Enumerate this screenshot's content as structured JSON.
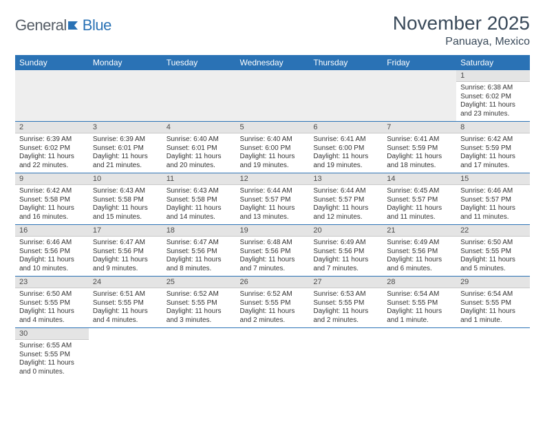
{
  "logo": {
    "text_general": "General",
    "text_blue": "Blue"
  },
  "title": "November 2025",
  "subtitle": "Panuaya, Mexico",
  "colors": {
    "header_bg": "#2a72b5",
    "header_text": "#ffffff",
    "daynum_bg": "#e4e4e4",
    "row_divider": "#2a72b5",
    "body_text": "#333333",
    "title_text": "#3a4a5a"
  },
  "day_headers": [
    "Sunday",
    "Monday",
    "Tuesday",
    "Wednesday",
    "Thursday",
    "Friday",
    "Saturday"
  ],
  "weeks": [
    [
      null,
      null,
      null,
      null,
      null,
      null,
      {
        "n": "1",
        "sr": "6:38 AM",
        "ss": "6:02 PM",
        "dl": "11 hours and 23 minutes."
      }
    ],
    [
      {
        "n": "2",
        "sr": "6:39 AM",
        "ss": "6:02 PM",
        "dl": "11 hours and 22 minutes."
      },
      {
        "n": "3",
        "sr": "6:39 AM",
        "ss": "6:01 PM",
        "dl": "11 hours and 21 minutes."
      },
      {
        "n": "4",
        "sr": "6:40 AM",
        "ss": "6:01 PM",
        "dl": "11 hours and 20 minutes."
      },
      {
        "n": "5",
        "sr": "6:40 AM",
        "ss": "6:00 PM",
        "dl": "11 hours and 19 minutes."
      },
      {
        "n": "6",
        "sr": "6:41 AM",
        "ss": "6:00 PM",
        "dl": "11 hours and 19 minutes."
      },
      {
        "n": "7",
        "sr": "6:41 AM",
        "ss": "5:59 PM",
        "dl": "11 hours and 18 minutes."
      },
      {
        "n": "8",
        "sr": "6:42 AM",
        "ss": "5:59 PM",
        "dl": "11 hours and 17 minutes."
      }
    ],
    [
      {
        "n": "9",
        "sr": "6:42 AM",
        "ss": "5:58 PM",
        "dl": "11 hours and 16 minutes."
      },
      {
        "n": "10",
        "sr": "6:43 AM",
        "ss": "5:58 PM",
        "dl": "11 hours and 15 minutes."
      },
      {
        "n": "11",
        "sr": "6:43 AM",
        "ss": "5:58 PM",
        "dl": "11 hours and 14 minutes."
      },
      {
        "n": "12",
        "sr": "6:44 AM",
        "ss": "5:57 PM",
        "dl": "11 hours and 13 minutes."
      },
      {
        "n": "13",
        "sr": "6:44 AM",
        "ss": "5:57 PM",
        "dl": "11 hours and 12 minutes."
      },
      {
        "n": "14",
        "sr": "6:45 AM",
        "ss": "5:57 PM",
        "dl": "11 hours and 11 minutes."
      },
      {
        "n": "15",
        "sr": "6:46 AM",
        "ss": "5:57 PM",
        "dl": "11 hours and 11 minutes."
      }
    ],
    [
      {
        "n": "16",
        "sr": "6:46 AM",
        "ss": "5:56 PM",
        "dl": "11 hours and 10 minutes."
      },
      {
        "n": "17",
        "sr": "6:47 AM",
        "ss": "5:56 PM",
        "dl": "11 hours and 9 minutes."
      },
      {
        "n": "18",
        "sr": "6:47 AM",
        "ss": "5:56 PM",
        "dl": "11 hours and 8 minutes."
      },
      {
        "n": "19",
        "sr": "6:48 AM",
        "ss": "5:56 PM",
        "dl": "11 hours and 7 minutes."
      },
      {
        "n": "20",
        "sr": "6:49 AM",
        "ss": "5:56 PM",
        "dl": "11 hours and 7 minutes."
      },
      {
        "n": "21",
        "sr": "6:49 AM",
        "ss": "5:56 PM",
        "dl": "11 hours and 6 minutes."
      },
      {
        "n": "22",
        "sr": "6:50 AM",
        "ss": "5:55 PM",
        "dl": "11 hours and 5 minutes."
      }
    ],
    [
      {
        "n": "23",
        "sr": "6:50 AM",
        "ss": "5:55 PM",
        "dl": "11 hours and 4 minutes."
      },
      {
        "n": "24",
        "sr": "6:51 AM",
        "ss": "5:55 PM",
        "dl": "11 hours and 4 minutes."
      },
      {
        "n": "25",
        "sr": "6:52 AM",
        "ss": "5:55 PM",
        "dl": "11 hours and 3 minutes."
      },
      {
        "n": "26",
        "sr": "6:52 AM",
        "ss": "5:55 PM",
        "dl": "11 hours and 2 minutes."
      },
      {
        "n": "27",
        "sr": "6:53 AM",
        "ss": "5:55 PM",
        "dl": "11 hours and 2 minutes."
      },
      {
        "n": "28",
        "sr": "6:54 AM",
        "ss": "5:55 PM",
        "dl": "11 hours and 1 minute."
      },
      {
        "n": "29",
        "sr": "6:54 AM",
        "ss": "5:55 PM",
        "dl": "11 hours and 1 minute."
      }
    ],
    [
      {
        "n": "30",
        "sr": "6:55 AM",
        "ss": "5:55 PM",
        "dl": "11 hours and 0 minutes."
      },
      null,
      null,
      null,
      null,
      null,
      null
    ]
  ],
  "labels": {
    "sunrise": "Sunrise:",
    "sunset": "Sunset:",
    "daylight": "Daylight:"
  }
}
